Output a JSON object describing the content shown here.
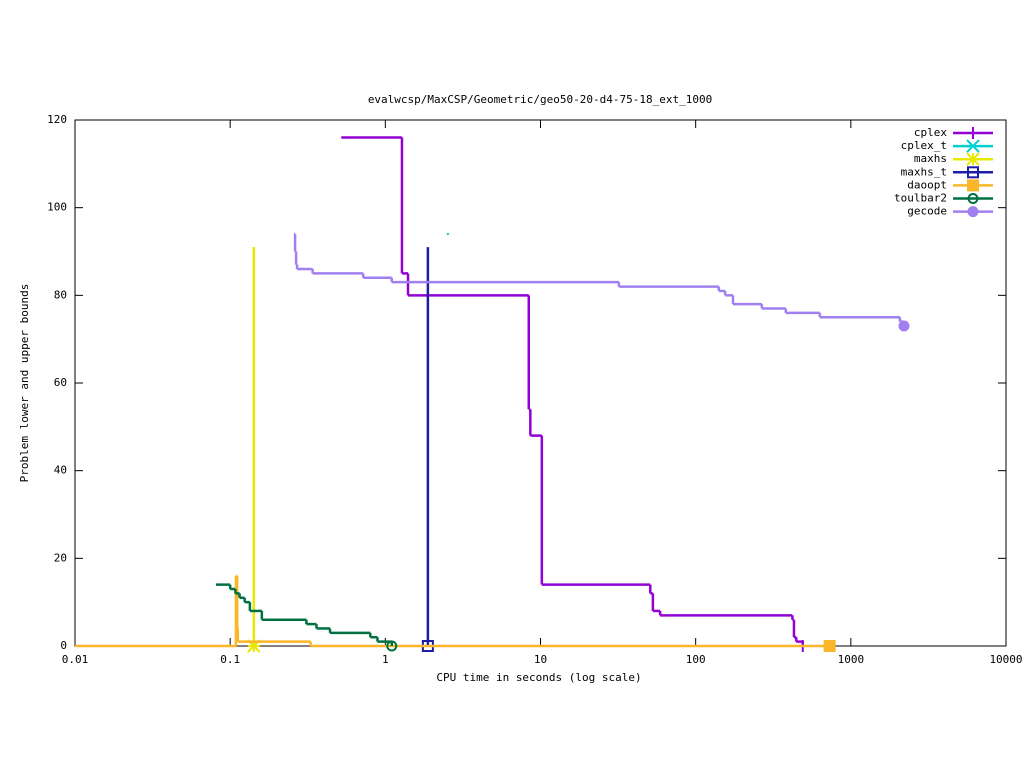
{
  "chart_data": {
    "type": "step",
    "title": "evalwcsp/MaxCSP/Geometric/geo50-20-d4-75-18_ext_1000",
    "x_label": "CPU time in seconds (log scale)",
    "y_label": "Problem lower and upper bounds",
    "xscale": "log",
    "xlim": [
      0.01,
      10000
    ],
    "xticks": [
      0.01,
      0.1,
      1,
      10,
      100,
      1000,
      10000
    ],
    "ylim": [
      0,
      120
    ],
    "yticks": [
      0,
      20,
      40,
      60,
      80,
      100,
      120
    ],
    "legend": "top-right",
    "series": [
      {
        "name": "cplex",
        "color": "#9400d3",
        "marker": "plus",
        "x": [
          0.52,
          1.28,
          1.4,
          8.4,
          8.6,
          10.2,
          51,
          53,
          59,
          420,
          430,
          445,
          490
        ],
        "values": [
          116,
          85,
          80,
          54,
          48,
          14,
          12,
          8,
          7,
          6,
          2,
          1,
          0
        ]
      },
      {
        "name": "cplex_t",
        "color": "#00d0d0",
        "marker": "cross",
        "x": [
          2.53
        ],
        "values": [
          94
        ]
      },
      {
        "name": "maxhs",
        "color": "#e8e800",
        "marker": "star",
        "x": [
          0.142,
          0.142
        ],
        "values": [
          91,
          0
        ]
      },
      {
        "name": "maxhs_t",
        "color": "#1c1ca8",
        "marker": "square-open",
        "x": [
          1.88,
          1.88
        ],
        "values": [
          91,
          0
        ]
      },
      {
        "name": "daoopt",
        "color": "#f8b628",
        "marker": "square",
        "x": [
          0.01,
          0.109,
          0.111,
          0.112,
          0.33,
          730
        ],
        "values": [
          0,
          16,
          4,
          1,
          0,
          0
        ]
      },
      {
        "name": "toulbar2",
        "color": "#007040",
        "marker": "circle-open",
        "x": [
          0.081,
          0.1,
          0.108,
          0.115,
          0.124,
          0.134,
          0.16,
          0.31,
          0.36,
          0.44,
          0.8,
          0.89,
          1.1
        ],
        "values": [
          14,
          13,
          12,
          11,
          10,
          8,
          6,
          5,
          4,
          3,
          2,
          1,
          0
        ]
      },
      {
        "name": "gecode",
        "color": "#a080f0",
        "marker": "circle",
        "x": [
          0.258,
          0.262,
          0.266,
          0.27,
          0.34,
          0.72,
          1.1,
          32,
          141,
          155,
          174,
          267,
          381,
          631,
          2070,
          2200
        ],
        "values": [
          94,
          90,
          87,
          86,
          85,
          84,
          83,
          82,
          81,
          80,
          78,
          77,
          76,
          75,
          74,
          73
        ]
      }
    ]
  }
}
